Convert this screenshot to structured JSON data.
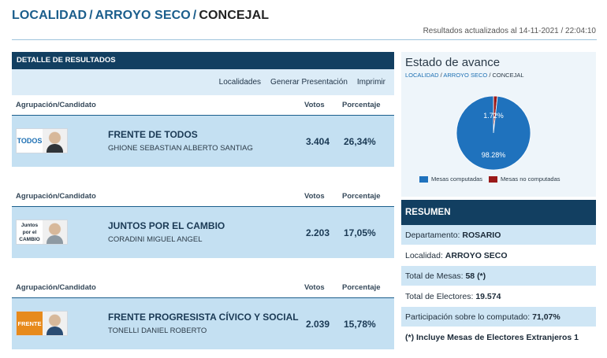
{
  "header": {
    "crumb1": "LOCALIDAD",
    "sep1": "/",
    "crumb2": "ARROYO SECO",
    "sep2": "/",
    "crumb3": "CONCEJAL",
    "updated": "Resultados actualizados al 14-11-2021 / 22:04:10"
  },
  "results": {
    "panel_title": "DETALLE DE RESULTADOS",
    "toolbar": [
      "Localidades",
      "Generar Presentación",
      "Imprimir"
    ],
    "col_candidate": "Agrupación/Candidato",
    "col_votes": "Votos",
    "col_pct": "Porcentaje",
    "rows": [
      {
        "party": "FRENTE DE TODOS",
        "candidate": "GHIONE SEBASTIAN ALBERTO SANTIAG",
        "votes": "3.404",
        "pct": "26,34%",
        "logo_text": "TODOS"
      },
      {
        "party": "JUNTOS POR EL CAMBIO",
        "candidate": "CORADINI MIGUEL ANGEL",
        "votes": "2.203",
        "pct": "17,05%",
        "logo_text": "Juntos por el CAMBIO"
      },
      {
        "party": "FRENTE PROGRESISTA CÍVICO Y SOCIAL",
        "candidate": "TONELLI DANIEL ROBERTO",
        "votes": "2.039",
        "pct": "15,78%",
        "logo_text": "FRENTE"
      }
    ]
  },
  "avance": {
    "title": "Estado de avance",
    "crumb_localidad": "LOCALIDAD",
    "crumb_sep": "/",
    "crumb_place": "ARROYO SECO",
    "crumb_cargo": "CONCEJAL",
    "chart_data": {
      "type": "pie",
      "slices": [
        {
          "label": "Mesas computadas",
          "value": 98.28,
          "display": "98.28%",
          "color": "#1f72bd"
        },
        {
          "label": "Mesas no computadas",
          "value": 1.72,
          "display": "1.72%",
          "color": "#9a1a1a"
        }
      ]
    }
  },
  "resumen": {
    "title": "RESUMEN",
    "rows": [
      {
        "label": "Departamento:",
        "value": "ROSARIO"
      },
      {
        "label": "Localidad:",
        "value": "ARROYO SECO"
      },
      {
        "label": "Total de Mesas:",
        "value": "58 (*)"
      },
      {
        "label": "Total de Electores:",
        "value": "19.574"
      },
      {
        "label": "Participación sobre lo computado:",
        "value": "71,07%"
      },
      {
        "label": "",
        "value": "(*) Incluye Mesas de Electores Extranjeros 1"
      }
    ]
  }
}
